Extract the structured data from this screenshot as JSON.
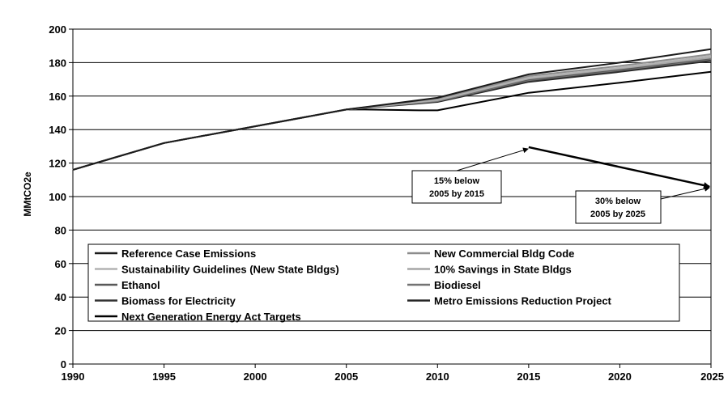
{
  "chart_data": {
    "type": "line",
    "title": "",
    "xlabel": "",
    "ylabel": "MMtCO2e",
    "xlim": [
      1990,
      2025
    ],
    "ylim": [
      0,
      200
    ],
    "x_ticks": [
      1990,
      1995,
      2000,
      2005,
      2010,
      2015,
      2020,
      2025
    ],
    "y_ticks": [
      0,
      20,
      40,
      60,
      80,
      100,
      120,
      140,
      160,
      180,
      200
    ],
    "grid": "horizontal",
    "legend_position": "lower-center",
    "series": [
      {
        "name": "Reference Case Emissions",
        "color": "#1a1a1a",
        "x": [
          1990,
          1995,
          2000,
          2005,
          2010,
          2015,
          2020,
          2025
        ],
        "y": [
          116,
          132,
          142,
          152,
          159,
          173,
          180,
          188
        ]
      },
      {
        "name": "New Commercial Bldg Code",
        "color": "#8c8c8c",
        "x": [
          1990,
          1995,
          2000,
          2005,
          2010,
          2015,
          2020,
          2025
        ],
        "y": [
          116,
          132,
          142,
          152,
          158.5,
          172,
          178,
          185
        ]
      },
      {
        "name": "Sustainability Guidelines (New State Bldgs)",
        "color": "#b3b3b3",
        "x": [
          1990,
          1995,
          2000,
          2005,
          2010,
          2015,
          2020,
          2025
        ],
        "y": [
          116,
          132,
          142,
          152,
          158,
          171,
          177,
          184
        ]
      },
      {
        "name": "10% Savings in State Bldgs",
        "color": "#a6a6a6",
        "x": [
          1990,
          1995,
          2000,
          2005,
          2010,
          2015,
          2020,
          2025
        ],
        "y": [
          116,
          132,
          142,
          152,
          157.5,
          170.5,
          176.5,
          183
        ]
      },
      {
        "name": "Ethanol",
        "color": "#595959",
        "x": [
          1990,
          1995,
          2000,
          2005,
          2010,
          2015,
          2020,
          2025
        ],
        "y": [
          116,
          132,
          142,
          152,
          157.5,
          170,
          176,
          182.5
        ]
      },
      {
        "name": "Biodiesel",
        "color": "#737373",
        "x": [
          1990,
          1995,
          2000,
          2005,
          2010,
          2015,
          2020,
          2025
        ],
        "y": [
          116,
          132,
          142,
          152,
          157,
          169.5,
          175.5,
          182
        ]
      },
      {
        "name": "Biomass for Electricity",
        "color": "#333333",
        "x": [
          1990,
          1995,
          2000,
          2005,
          2010,
          2015,
          2020,
          2025
        ],
        "y": [
          116,
          132,
          142,
          152,
          157,
          169,
          175,
          181.5
        ]
      },
      {
        "name": "Metro Emissions Reduction Project",
        "color": "#262626",
        "x": [
          1990,
          1995,
          2000,
          2005,
          2010,
          2015,
          2020,
          2025
        ],
        "y": [
          116,
          132,
          142,
          152,
          156.5,
          168.5,
          174.5,
          181
        ]
      },
      {
        "name": "Next Generation Energy Act Targets",
        "color": "#000000",
        "x": [
          1990,
          1995,
          2000,
          2005,
          2006,
          2009,
          2010,
          2015,
          2020,
          2025
        ],
        "y": [
          116,
          132,
          142,
          152,
          152,
          151.5,
          151.5,
          162,
          168,
          174.5
        ]
      }
    ],
    "target_line": {
      "x": [
        2015,
        2025
      ],
      "y": [
        129.5,
        106
      ],
      "color": "#000000"
    },
    "annotations": [
      {
        "lines": [
          "15% below",
          "2005 by 2015"
        ],
        "points_to": [
          2015,
          129.5
        ]
      },
      {
        "lines": [
          "30% below",
          "2005 by 2025"
        ],
        "points_to": [
          2025,
          106
        ]
      }
    ]
  }
}
